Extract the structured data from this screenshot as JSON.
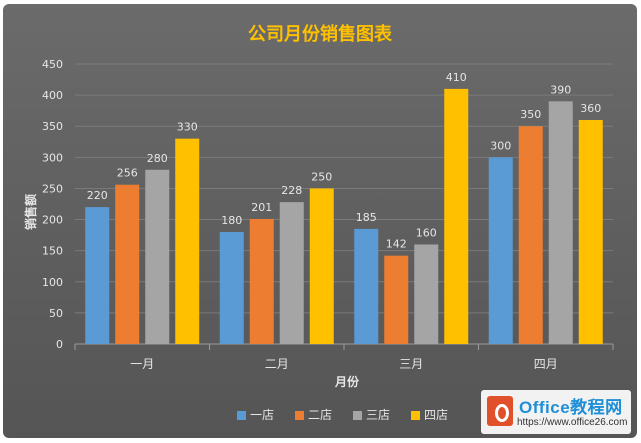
{
  "chart_data": {
    "type": "bar",
    "title": "公司月份销售图表",
    "xlabel": "月份",
    "ylabel": "销售额",
    "categories": [
      "一月",
      "二月",
      "三月",
      "四月"
    ],
    "ylim": [
      0,
      450
    ],
    "yticks": [
      0,
      50,
      100,
      150,
      200,
      250,
      300,
      350,
      400,
      450
    ],
    "grid": true,
    "legend_position": "bottom",
    "series": [
      {
        "name": "一店",
        "values": [
          220,
          180,
          185,
          300
        ],
        "color": "#5b9bd5"
      },
      {
        "name": "二店",
        "values": [
          256,
          201,
          142,
          350
        ],
        "color": "#ed7d31"
      },
      {
        "name": "三店",
        "values": [
          280,
          228,
          160,
          390
        ],
        "color": "#a5a5a5"
      },
      {
        "name": "四店",
        "values": [
          330,
          250,
          410,
          360
        ],
        "color": "#ffc000"
      }
    ]
  },
  "watermark": {
    "title": "Office教程网",
    "url": "https://www.office26.com"
  },
  "colors": {
    "title": "#ffc000",
    "axis_text": "#e6e6e6",
    "gridline": "#7a7a7a"
  }
}
